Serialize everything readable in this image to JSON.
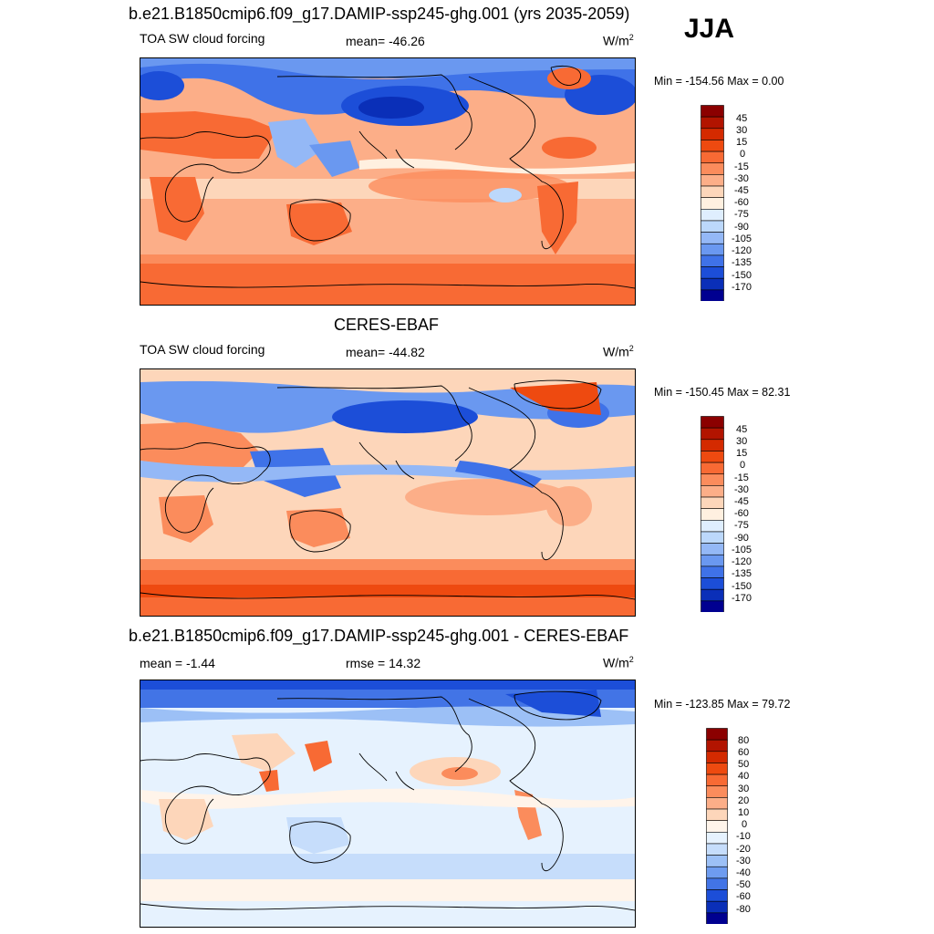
{
  "season": "JJA",
  "panels": [
    {
      "title": "b.e21.B1850cmip6.f09_g17.DAMIP-ssp245-ghg.001 (yrs 2035-2059)",
      "left_label": "TOA SW cloud forcing",
      "center_label": "mean= -46.26",
      "units_base": "W/m",
      "units_exp": "2",
      "minmax": "Min = -154.56 Max =   0.00",
      "chart_data": {
        "type": "heatmap",
        "field": "TOA SW cloud forcing",
        "mean": -46.26,
        "min": -154.56,
        "max": 0.0,
        "colorbar_levels": [
          45,
          30,
          15,
          0,
          -15,
          -30,
          -45,
          -60,
          -75,
          -90,
          -105,
          -120,
          -135,
          -150,
          -170
        ]
      }
    },
    {
      "title": "CERES-EBAF",
      "left_label": "TOA SW cloud forcing",
      "center_label": "mean= -44.82",
      "units_base": "W/m",
      "units_exp": "2",
      "minmax": "Min = -150.45 Max =  82.31",
      "chart_data": {
        "type": "heatmap",
        "field": "TOA SW cloud forcing",
        "mean": -44.82,
        "min": -150.45,
        "max": 82.31,
        "colorbar_levels": [
          45,
          30,
          15,
          0,
          -15,
          -30,
          -45,
          -60,
          -75,
          -90,
          -105,
          -120,
          -135,
          -150,
          -170
        ]
      }
    },
    {
      "title": "b.e21.B1850cmip6.f09_g17.DAMIP-ssp245-ghg.001 - CERES-EBAF",
      "left_label": "mean =  -1.44",
      "center_label": "rmse =  14.32",
      "units_base": "W/m",
      "units_exp": "2",
      "minmax": "Min = -123.85 Max =  79.72",
      "chart_data": {
        "type": "heatmap",
        "field": "difference",
        "mean": -1.44,
        "rmse": 14.32,
        "min": -123.85,
        "max": 79.72,
        "colorbar_levels": [
          80,
          60,
          50,
          40,
          30,
          20,
          10,
          0,
          -10,
          -20,
          -30,
          -40,
          -50,
          -60,
          -80
        ]
      }
    }
  ],
  "colors": {
    "cb1": [
      "#8b0000",
      "#b21400",
      "#d42a00",
      "#ee4a10",
      "#f86a34",
      "#fb8c5c",
      "#fcae88",
      "#fdd6ba",
      "#fff0e0",
      "#dfeefe",
      "#bcd8fb",
      "#94b8f6",
      "#6a98f0",
      "#3f72e8",
      "#1c4ed8",
      "#0a2fb8",
      "#000090"
    ],
    "cb3": [
      "#8b0000",
      "#b21400",
      "#d42a00",
      "#ee4a10",
      "#f86a34",
      "#fb8c5c",
      "#fcae88",
      "#fdd6ba",
      "#fff4ea",
      "#e6f2fe",
      "#c6ddfb",
      "#9cc0f6",
      "#6e9cf0",
      "#4274e6",
      "#1c4ed8",
      "#0a2fb8",
      "#000090"
    ]
  }
}
